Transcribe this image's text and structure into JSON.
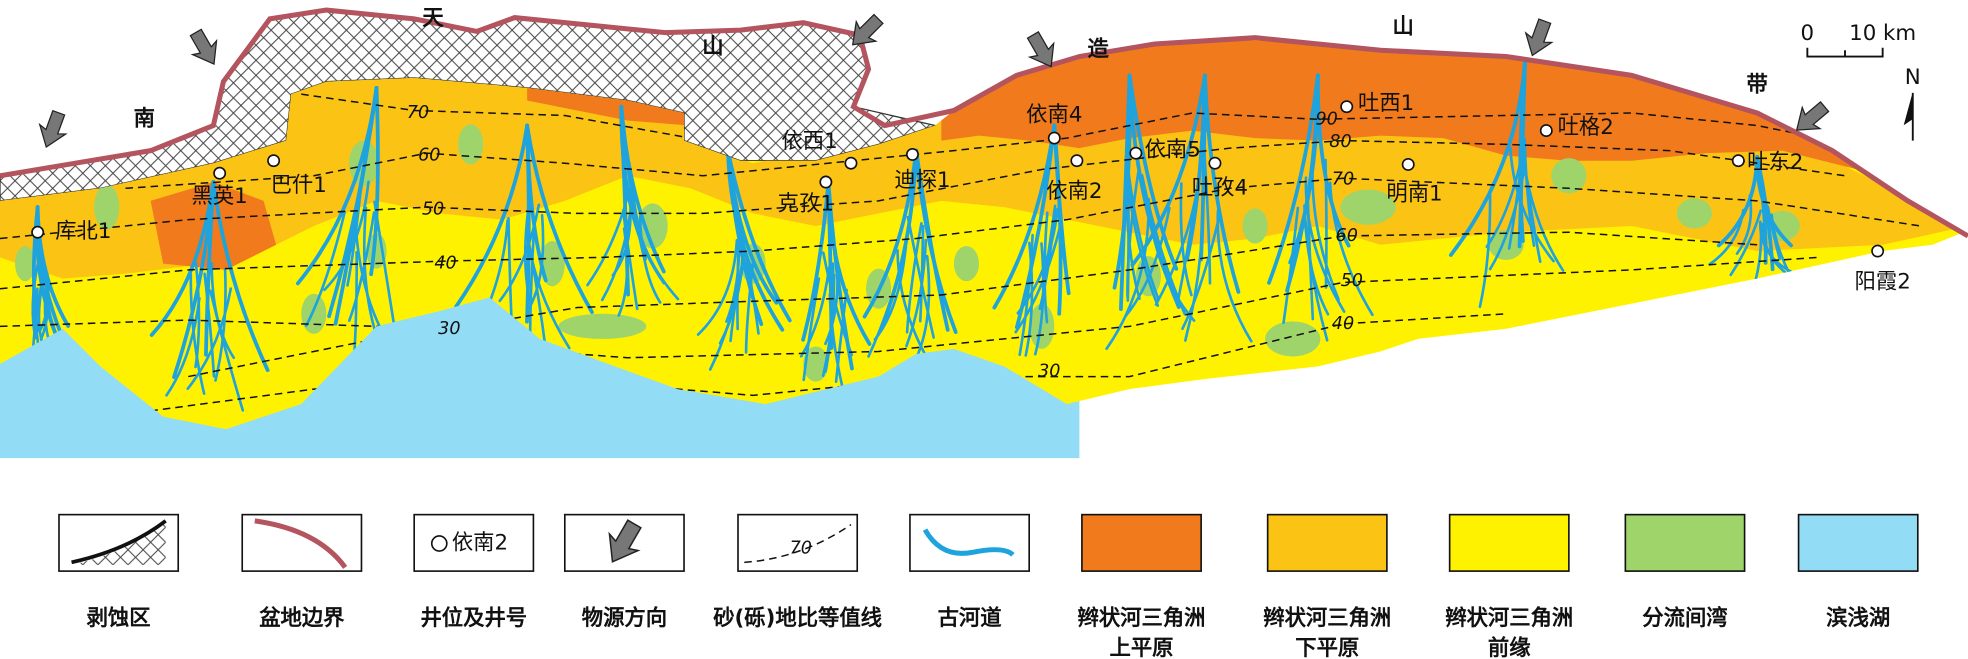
{
  "map": {
    "mountain_belt": [
      "南",
      "天",
      "山",
      "造",
      "山",
      "带"
    ],
    "wells": [
      "库北1",
      "黑英1",
      "巴什1",
      "依西1",
      "克孜1",
      "迪探1",
      "依南4",
      "依南2",
      "依南5",
      "吐孜4",
      "吐西1",
      "明南1",
      "吐格2",
      "吐东2",
      "阳霞2"
    ],
    "contour_labels": [
      70,
      60,
      50,
      40,
      30,
      90,
      80,
      70,
      60,
      50,
      40,
      30
    ],
    "scale": {
      "start": "0",
      "end": "10 km"
    },
    "north": "N"
  },
  "legend": {
    "items": [
      {
        "label": [
          "剥蚀区"
        ]
      },
      {
        "label": [
          "盆地边界"
        ]
      },
      {
        "label": [
          "井位及井号"
        ],
        "sample": "依南2"
      },
      {
        "label": [
          "物源方向"
        ]
      },
      {
        "label": [
          "砂(砾)地比等值线"
        ],
        "sample": "70"
      },
      {
        "label": [
          "古河道"
        ]
      },
      {
        "label": [
          "辫状河三角洲",
          "上平原"
        ]
      },
      {
        "label": [
          "辫状河三角洲",
          "下平原"
        ]
      },
      {
        "label": [
          "辫状河三角洲",
          "前缘"
        ]
      },
      {
        "label": [
          "分流间湾"
        ]
      },
      {
        "label": [
          "滨浅湖"
        ]
      }
    ]
  }
}
